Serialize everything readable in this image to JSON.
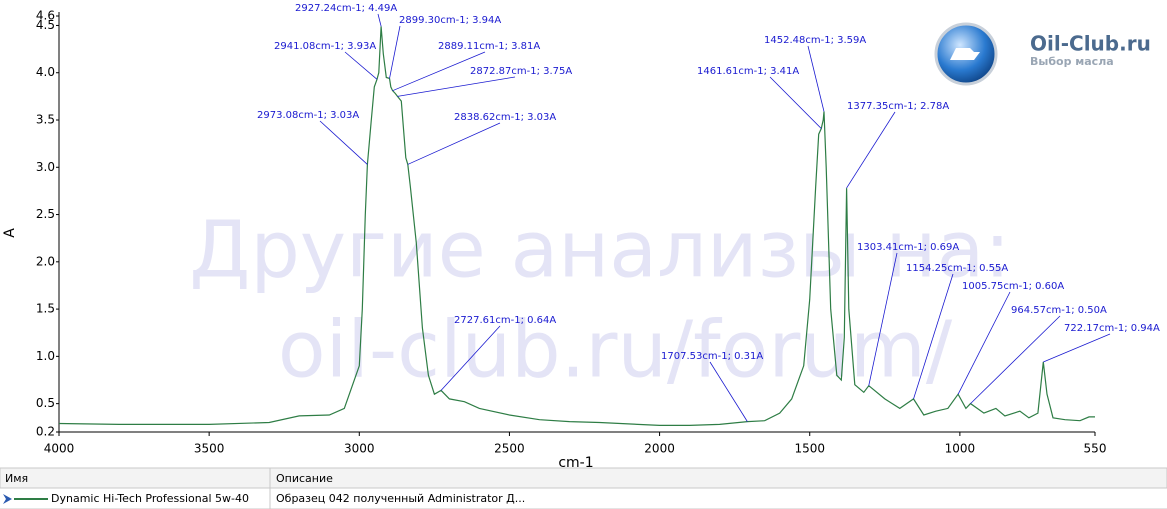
{
  "chart_data": {
    "type": "line",
    "x_label": "cm-1",
    "y_label": "A",
    "xlim": [
      4000,
      550
    ],
    "ylim": [
      0.2,
      4.6
    ],
    "xticks": [
      4000,
      3500,
      3000,
      2500,
      2000,
      1500,
      1000,
      550
    ],
    "yticks": [
      0.2,
      0.5,
      {
        "value": 1,
        "label": "1.0"
      },
      1.5,
      {
        "value": 2,
        "label": "2.0"
      },
      2.5,
      {
        "value": 3,
        "label": "3.0"
      },
      3.5,
      {
        "value": 4,
        "label": "4.0"
      },
      4.5,
      4.6
    ],
    "series": [
      {
        "name": "Dynamic Hi-Tech Professional 5w-40",
        "color": "#2e7d45",
        "x": [
          4000,
          3800,
          3500,
          3300,
          3200,
          3100,
          3050,
          3000,
          2990,
          2980,
          2973.08,
          2960,
          2950,
          2941.08,
          2935,
          2927.24,
          2920,
          2910,
          2899.3,
          2895,
          2889.11,
          2880,
          2872.87,
          2860,
          2850,
          2845,
          2838.62,
          2830,
          2810,
          2790,
          2770,
          2750,
          2727.61,
          2700,
          2650,
          2600,
          2500,
          2400,
          2300,
          2200,
          2000,
          1900,
          1800,
          1707.53,
          1650,
          1600,
          1560,
          1520,
          1500,
          1480,
          1470,
          1461.61,
          1455,
          1452.48,
          1445,
          1430,
          1410,
          1395,
          1385,
          1377.35,
          1370,
          1350,
          1320,
          1303.41,
          1250,
          1200,
          1154.25,
          1120,
          1080,
          1040,
          1005.75,
          980,
          964.57,
          920,
          880,
          850,
          800,
          770,
          740,
          722.17,
          710,
          690,
          650,
          600,
          570,
          550
        ],
        "values": [
          0.29,
          0.28,
          0.28,
          0.3,
          0.37,
          0.38,
          0.45,
          0.9,
          1.5,
          2.5,
          3.03,
          3.5,
          3.85,
          3.93,
          4.0,
          4.49,
          4.2,
          3.95,
          3.94,
          3.85,
          3.81,
          3.78,
          3.75,
          3.7,
          3.3,
          3.1,
          3.03,
          2.8,
          2.2,
          1.3,
          0.8,
          0.6,
          0.64,
          0.55,
          0.52,
          0.45,
          0.38,
          0.33,
          0.31,
          0.3,
          0.27,
          0.27,
          0.28,
          0.31,
          0.32,
          0.4,
          0.55,
          0.9,
          1.6,
          2.8,
          3.35,
          3.41,
          3.5,
          3.59,
          3.0,
          1.5,
          0.8,
          0.75,
          1.2,
          2.78,
          1.5,
          0.7,
          0.62,
          0.69,
          0.55,
          0.45,
          0.55,
          0.38,
          0.42,
          0.45,
          0.6,
          0.45,
          0.5,
          0.4,
          0.45,
          0.37,
          0.42,
          0.35,
          0.4,
          0.94,
          0.6,
          0.35,
          0.33,
          0.32,
          0.36,
          0.36
        ]
      }
    ],
    "annotations": [
      {
        "label": "2927.24cm-1; 4.49A",
        "x": 2927.24,
        "y": 4.49
      },
      {
        "label": "2899.30cm-1; 3.94A",
        "x": 2899.3,
        "y": 3.94
      },
      {
        "label": "2941.08cm-1; 3.93A",
        "x": 2941.08,
        "y": 3.93
      },
      {
        "label": "2889.11cm-1; 3.81A",
        "x": 2889.11,
        "y": 3.81
      },
      {
        "label": "2872.87cm-1; 3.75A",
        "x": 2872.87,
        "y": 3.75
      },
      {
        "label": "2973.08cm-1; 3.03A",
        "x": 2973.08,
        "y": 3.03
      },
      {
        "label": "2838.62cm-1; 3.03A",
        "x": 2838.62,
        "y": 3.03
      },
      {
        "label": "2727.61cm-1; 0.64A",
        "x": 2727.61,
        "y": 0.64
      },
      {
        "label": "1707.53cm-1; 0.31A",
        "x": 1707.53,
        "y": 0.31
      },
      {
        "label": "1461.61cm-1; 3.41A",
        "x": 1461.61,
        "y": 3.41
      },
      {
        "label": "1452.48cm-1; 3.59A",
        "x": 1452.48,
        "y": 3.59
      },
      {
        "label": "1377.35cm-1; 2.78A",
        "x": 1377.35,
        "y": 2.78
      },
      {
        "label": "1303.41cm-1; 0.69A",
        "x": 1303.41,
        "y": 0.69
      },
      {
        "label": "1154.25cm-1; 0.55A",
        "x": 1154.25,
        "y": 0.55
      },
      {
        "label": "1005.75cm-1; 0.60A",
        "x": 1005.75,
        "y": 0.6
      },
      {
        "label": "964.57cm-1; 0.50A",
        "x": 964.57,
        "y": 0.5
      },
      {
        "label": "722.17cm-1; 0.94A",
        "x": 722.17,
        "y": 0.94
      }
    ]
  },
  "watermark": [
    "Другие анализы на:",
    "oil-club.ru/forum/"
  ],
  "logo": {
    "title": "Oil-Club.ru",
    "subtitle": "Выбор масла"
  },
  "legend_table": {
    "columns": [
      "Имя",
      "Описание"
    ],
    "description": "Образец 042 полученный Administrator Д..."
  }
}
